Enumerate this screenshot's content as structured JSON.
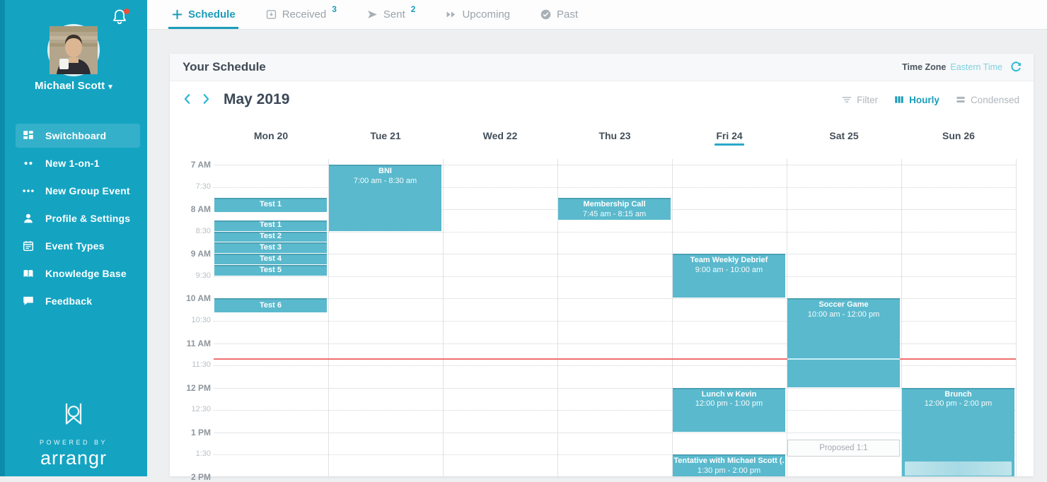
{
  "colors": {
    "accent": "#1b9cba",
    "sidebar": "#14a4c2",
    "event": "#5ab9cd",
    "now_line": "#ef706e"
  },
  "sidebar": {
    "user_name": "Michael Scott",
    "items": [
      {
        "label": "Switchboard",
        "icon": "grid-icon",
        "active": true
      },
      {
        "label": "New 1-on-1",
        "icon": "two-dots-icon",
        "active": false
      },
      {
        "label": "New Group Event",
        "icon": "three-dots-icon",
        "active": false
      },
      {
        "label": "Profile & Settings",
        "icon": "person-icon",
        "active": false
      },
      {
        "label": "Event Types",
        "icon": "calendar-icon",
        "active": false
      },
      {
        "label": "Knowledge Base",
        "icon": "book-icon",
        "active": false
      },
      {
        "label": "Feedback",
        "icon": "chat-icon",
        "active": false
      }
    ],
    "powered_by": "POWERED BY",
    "brand": "arrangr"
  },
  "tabs": [
    {
      "label": "Schedule",
      "icon": "plus-icon",
      "badge": "",
      "active": true
    },
    {
      "label": "Received",
      "icon": "inbox-icon",
      "badge": "3",
      "active": false
    },
    {
      "label": "Sent",
      "icon": "send-icon",
      "badge": "2",
      "active": false
    },
    {
      "label": "Upcoming",
      "icon": "forward-icon",
      "badge": "",
      "active": false
    },
    {
      "label": "Past",
      "icon": "check-circle-icon",
      "badge": "",
      "active": false
    }
  ],
  "schedule": {
    "title": "Your Schedule",
    "timezone_label": "Time Zone",
    "timezone_value": "Eastern Time",
    "month": "May 2019",
    "controls": [
      {
        "label": "Filter",
        "icon": "filter-icon",
        "active": false
      },
      {
        "label": "Hourly",
        "icon": "bars-vertical-icon",
        "active": true
      },
      {
        "label": "Condensed",
        "icon": "bars-horizontal-icon",
        "active": false
      }
    ],
    "days": [
      {
        "label": "Mon 20",
        "today": false
      },
      {
        "label": "Tue 21",
        "today": false
      },
      {
        "label": "Wed 22",
        "today": false
      },
      {
        "label": "Thu 23",
        "today": false
      },
      {
        "label": "Fri 24",
        "today": true
      },
      {
        "label": "Sat 25",
        "today": false
      },
      {
        "label": "Sun 26",
        "today": false
      }
    ],
    "times": [
      "7 AM",
      "7:30",
      "8 AM",
      "8:30",
      "9 AM",
      "9:30",
      "10 AM",
      "10:30",
      "11 AM",
      "11:30",
      "12 PM",
      "12:30",
      "1 PM",
      "1:30",
      "2 PM"
    ],
    "now_indicator_time": "11:20",
    "events": [
      {
        "day": 0,
        "start": "07:45",
        "end": "08:05",
        "title": "Test 1",
        "time_label": ""
      },
      {
        "day": 0,
        "start": "08:15",
        "end": "08:30",
        "title": "Test 1",
        "time_label": ""
      },
      {
        "day": 0,
        "start": "08:30",
        "end": "08:45",
        "title": "Test 2",
        "time_label": ""
      },
      {
        "day": 0,
        "start": "08:45",
        "end": "09:00",
        "title": "Test 3",
        "time_label": ""
      },
      {
        "day": 0,
        "start": "09:00",
        "end": "09:15",
        "title": "Test 4",
        "time_label": ""
      },
      {
        "day": 0,
        "start": "09:15",
        "end": "09:30",
        "title": "Test 5",
        "time_label": ""
      },
      {
        "day": 0,
        "start": "10:00",
        "end": "10:20",
        "title": "Test 6",
        "time_label": ""
      },
      {
        "day": 1,
        "start": "07:00",
        "end": "08:30",
        "title": "BNI",
        "time_label": "7:00 am - 8:30 am"
      },
      {
        "day": 3,
        "start": "07:45",
        "end": "08:15",
        "title": "Membership Call",
        "time_label": "7:45 am - 8:15 am"
      },
      {
        "day": 4,
        "start": "09:00",
        "end": "10:00",
        "title": "Team Weekly Debrief",
        "time_label": "9:00 am - 10:00 am"
      },
      {
        "day": 4,
        "start": "12:00",
        "end": "13:00",
        "title": "Lunch w Kevin",
        "time_label": "12:00 pm - 1:00 pm"
      },
      {
        "day": 4,
        "start": "13:30",
        "end": "14:00",
        "title": "Tentative with Michael Scott (.",
        "time_label": "1:30 pm - 2:00 pm"
      },
      {
        "day": 5,
        "start": "10:00",
        "end": "12:00",
        "title": "Soccer Game",
        "time_label": "10:00 am - 12:00 pm"
      },
      {
        "day": 5,
        "start": "13:10",
        "end": "13:33",
        "title": "Proposed 1:1",
        "time_label": "",
        "proposed": true
      },
      {
        "day": 6,
        "start": "12:00",
        "end": "14:00",
        "title": "Brunch",
        "time_label": "12:00 pm - 2:00 pm",
        "blur_bottom": true
      }
    ]
  }
}
